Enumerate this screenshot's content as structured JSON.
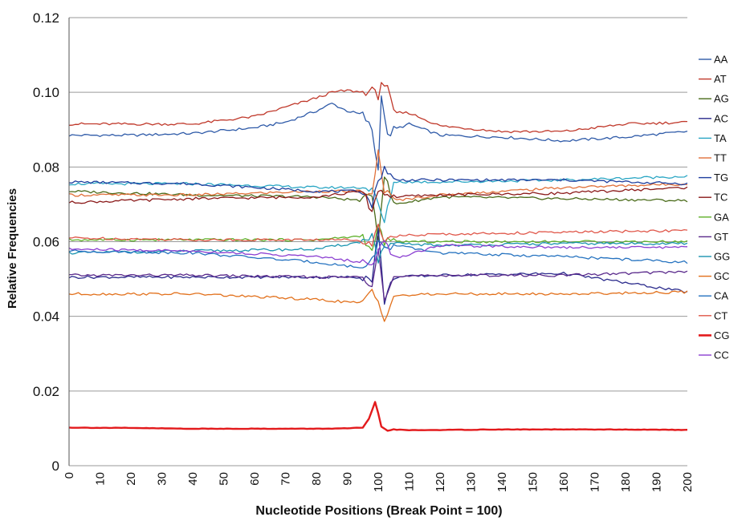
{
  "chart_data": {
    "type": "line",
    "title": "",
    "xlabel": "Nucleotide Positions (Break Point = 100)",
    "ylabel": "Relative Frequencies",
    "xlim": [
      0,
      200
    ],
    "ylim": [
      0,
      0.12
    ],
    "x_ticks": [
      0,
      10,
      20,
      30,
      40,
      50,
      60,
      70,
      80,
      90,
      100,
      110,
      120,
      130,
      140,
      150,
      160,
      170,
      180,
      190,
      200
    ],
    "y_ticks": [
      0,
      0.02,
      0.04,
      0.06,
      0.08,
      0.1,
      0.12
    ],
    "y_tick_labels": [
      "0",
      "0.02",
      "0.04",
      "0.06",
      "0.08",
      "0.10",
      "0.12"
    ],
    "grid": "horizontal",
    "legend_position": "right",
    "series": [
      {
        "name": "AA",
        "color": "#2e5aa8",
        "x": [
          0,
          20,
          40,
          60,
          70,
          80,
          85,
          90,
          95,
          98,
          100,
          101,
          103,
          105,
          110,
          120,
          140,
          160,
          180,
          200
        ],
        "values": [
          0.0885,
          0.0885,
          0.089,
          0.0905,
          0.092,
          0.095,
          0.097,
          0.095,
          0.094,
          0.09,
          0.079,
          0.1,
          0.088,
          0.09,
          0.0915,
          0.0885,
          0.088,
          0.087,
          0.088,
          0.0895
        ]
      },
      {
        "name": "AT",
        "color": "#c0392b",
        "x": [
          0,
          20,
          40,
          60,
          70,
          80,
          85,
          90,
          95,
          98,
          100,
          101,
          103,
          105,
          110,
          120,
          140,
          160,
          180,
          200
        ],
        "values": [
          0.0915,
          0.0915,
          0.0915,
          0.0935,
          0.096,
          0.0985,
          0.1,
          0.1005,
          0.1,
          0.1005,
          0.099,
          0.103,
          0.101,
          0.0945,
          0.0945,
          0.091,
          0.0895,
          0.0895,
          0.0915,
          0.092
        ]
      },
      {
        "name": "AG",
        "color": "#4a6b1a",
        "x": [
          0,
          40,
          80,
          95,
          98,
          100,
          102,
          105,
          120,
          160,
          200
        ],
        "values": [
          0.0735,
          0.0725,
          0.072,
          0.071,
          0.073,
          0.061,
          0.078,
          0.07,
          0.072,
          0.0715,
          0.071
        ]
      },
      {
        "name": "AC",
        "color": "#2a2a8c",
        "x": [
          0,
          40,
          80,
          95,
          98,
          100,
          102,
          105,
          120,
          160,
          200
        ],
        "values": [
          0.0505,
          0.0505,
          0.0505,
          0.0505,
          0.05,
          0.063,
          0.044,
          0.0505,
          0.051,
          0.0515,
          0.0465
        ]
      },
      {
        "name": "TA",
        "color": "#2aa6c4",
        "x": [
          0,
          40,
          80,
          95,
          98,
          100,
          102,
          105,
          120,
          160,
          200
        ],
        "values": [
          0.0755,
          0.0755,
          0.0745,
          0.0745,
          0.074,
          0.07,
          0.065,
          0.076,
          0.076,
          0.0765,
          0.0775
        ]
      },
      {
        "name": "TT",
        "color": "#e0703a",
        "x": [
          0,
          40,
          80,
          95,
          98,
          100,
          102,
          105,
          120,
          160,
          200
        ],
        "values": [
          0.0725,
          0.0725,
          0.0735,
          0.0735,
          0.072,
          0.084,
          0.074,
          0.071,
          0.0725,
          0.0745,
          0.0755
        ]
      },
      {
        "name": "TG",
        "color": "#1f3f9e",
        "x": [
          0,
          40,
          80,
          95,
          98,
          100,
          102,
          105,
          120,
          160,
          200
        ],
        "values": [
          0.076,
          0.0755,
          0.0735,
          0.0735,
          0.07,
          0.076,
          0.08,
          0.0765,
          0.0765,
          0.0765,
          0.0755
        ]
      },
      {
        "name": "TC",
        "color": "#8b1a1a",
        "x": [
          0,
          40,
          80,
          95,
          98,
          100,
          102,
          105,
          120,
          160,
          200
        ],
        "values": [
          0.0705,
          0.0715,
          0.072,
          0.0735,
          0.068,
          0.074,
          0.073,
          0.072,
          0.0725,
          0.073,
          0.0745
        ]
      },
      {
        "name": "GA",
        "color": "#5fb12a",
        "x": [
          0,
          40,
          80,
          95,
          98,
          100,
          102,
          105,
          120,
          160,
          200
        ],
        "values": [
          0.0605,
          0.0605,
          0.0605,
          0.0615,
          0.057,
          0.064,
          0.06,
          0.06,
          0.06,
          0.06,
          0.06
        ]
      },
      {
        "name": "GT",
        "color": "#5a2a8c",
        "x": [
          0,
          40,
          80,
          95,
          98,
          100,
          102,
          105,
          120,
          160,
          200
        ],
        "values": [
          0.051,
          0.051,
          0.0505,
          0.0505,
          0.0485,
          0.059,
          0.045,
          0.0505,
          0.051,
          0.051,
          0.052
        ]
      },
      {
        "name": "GG",
        "color": "#1b95b0",
        "x": [
          0,
          40,
          80,
          95,
          98,
          100,
          102,
          105,
          120,
          160,
          200
        ],
        "values": [
          0.057,
          0.0575,
          0.058,
          0.06,
          0.062,
          0.055,
          0.058,
          0.0595,
          0.059,
          0.0595,
          0.0595
        ]
      },
      {
        "name": "GC",
        "color": "#e2701b",
        "x": [
          0,
          40,
          80,
          95,
          98,
          100,
          102,
          105,
          120,
          160,
          200
        ],
        "values": [
          0.046,
          0.046,
          0.0445,
          0.0435,
          0.047,
          0.044,
          0.0395,
          0.0455,
          0.046,
          0.046,
          0.0465
        ]
      },
      {
        "name": "CA",
        "color": "#2673c0",
        "x": [
          0,
          40,
          80,
          95,
          98,
          100,
          102,
          105,
          120,
          160,
          200
        ],
        "values": [
          0.0575,
          0.057,
          0.0545,
          0.053,
          0.055,
          0.06,
          0.058,
          0.059,
          0.057,
          0.056,
          0.0545
        ]
      },
      {
        "name": "CT",
        "color": "#e0574a",
        "x": [
          0,
          40,
          80,
          95,
          98,
          100,
          102,
          105,
          120,
          160,
          200
        ],
        "values": [
          0.061,
          0.0605,
          0.0605,
          0.0605,
          0.0595,
          0.064,
          0.061,
          0.0615,
          0.062,
          0.0625,
          0.063
        ]
      },
      {
        "name": "CG",
        "color": "#e31a1c",
        "x": [
          0,
          20,
          40,
          60,
          80,
          90,
          95,
          97,
          99,
          100,
          101,
          103,
          105,
          110,
          140,
          170,
          200
        ],
        "values": [
          0.0102,
          0.0101,
          0.0099,
          0.0099,
          0.0099,
          0.01,
          0.0102,
          0.0125,
          0.017,
          0.014,
          0.0105,
          0.0094,
          0.0097,
          0.0095,
          0.0097,
          0.0097,
          0.0096
        ]
      },
      {
        "name": "CC",
        "color": "#8b3fd1",
        "x": [
          0,
          40,
          80,
          95,
          98,
          100,
          102,
          105,
          120,
          160,
          200
        ],
        "values": [
          0.058,
          0.0575,
          0.056,
          0.0545,
          0.053,
          0.058,
          0.061,
          0.0555,
          0.059,
          0.0585,
          0.0585
        ]
      }
    ]
  }
}
